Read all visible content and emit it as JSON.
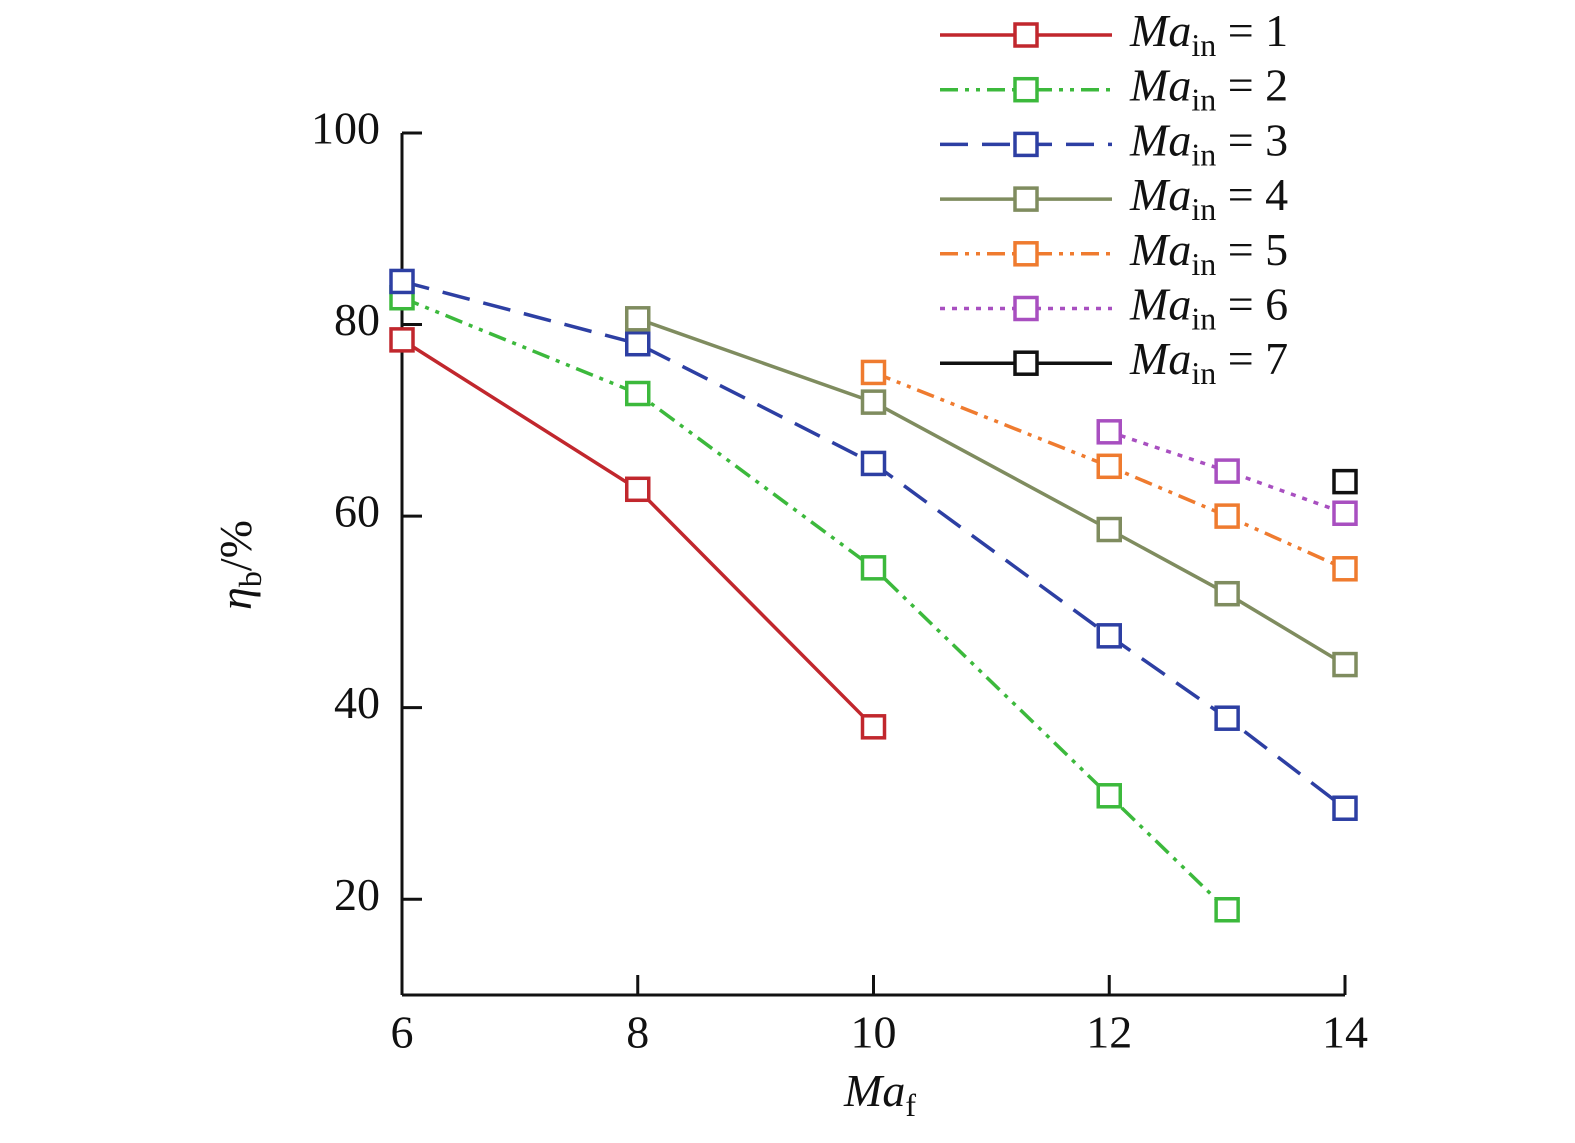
{
  "chart_data": {
    "type": "line",
    "xlabel": "Maf",
    "ylabel": "ηb/%",
    "xlim": [
      6,
      14
    ],
    "xticks": [
      6,
      8,
      10,
      12,
      14
    ],
    "ylim": [
      10,
      100
    ],
    "yticks": [
      20,
      40,
      60,
      80,
      100
    ],
    "legend": "upper right",
    "series": [
      {
        "name": "Main = 1",
        "color": "#c1272d",
        "linestyle": "solid",
        "x": [
          6,
          8,
          10
        ],
        "values": [
          78.4,
          62.8,
          38
        ]
      },
      {
        "name": "Main = 2",
        "color": "#3cb93c",
        "linestyle": "dashdotdot",
        "x": [
          6,
          8,
          10,
          12,
          13
        ],
        "values": [
          82.8,
          72.8,
          54.6,
          30.8,
          18.9
        ]
      },
      {
        "name": "Main = 3",
        "color": "#2d3fa3",
        "linestyle": "dashed",
        "x": [
          6,
          8,
          10,
          12,
          13,
          14
        ],
        "values": [
          84.5,
          78,
          65.5,
          47.5,
          38.9,
          29.5
        ]
      },
      {
        "name": "Main = 4",
        "color": "#7f8c5f",
        "linestyle": "solid",
        "x": [
          8,
          10,
          12,
          13,
          14
        ],
        "values": [
          80.6,
          71.9,
          58.6,
          51.9,
          44.5
        ]
      },
      {
        "name": "Main = 5",
        "color": "#ef7b2f",
        "linestyle": "dashdotdot",
        "x": [
          10,
          12,
          13,
          14
        ],
        "values": [
          75,
          65.2,
          60,
          54.5
        ]
      },
      {
        "name": "Main = 6",
        "color": "#a84fc0",
        "linestyle": "dotted",
        "x": [
          12,
          13,
          14
        ],
        "values": [
          68.8,
          64.7,
          60.3
        ]
      },
      {
        "name": "Main = 7",
        "color": "#111111",
        "linestyle": "solid",
        "x": [
          14
        ],
        "values": [
          63.6
        ]
      }
    ]
  }
}
